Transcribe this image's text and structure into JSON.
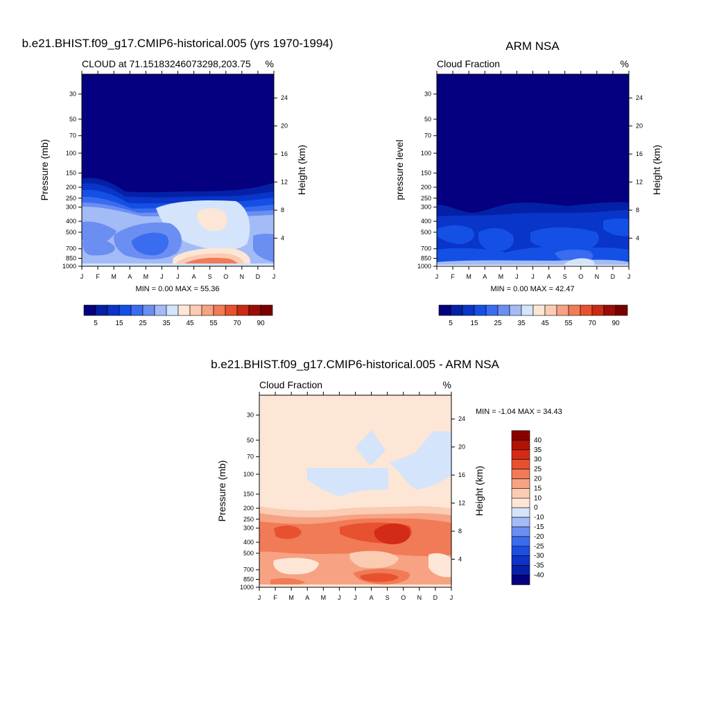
{
  "chart_data": [
    {
      "type": "heatmap",
      "title": "b.e21.BHIST.f09_g17.CMIP6-historical.005 (yrs 1970-1994)",
      "left_label": "CLOUD at 71.15183246073298,203.75",
      "right_label": "%",
      "ylabel": "Pressure (mb)",
      "ylabel_right": "Height (km)",
      "xticks": [
        "J",
        "F",
        "M",
        "A",
        "M",
        "J",
        "J",
        "A",
        "S",
        "O",
        "N",
        "D",
        "J"
      ],
      "yticks": [
        "30",
        "50",
        "70",
        "100",
        "150",
        "200",
        "250",
        "300",
        "400",
        "500",
        "700",
        "850",
        "1000"
      ],
      "height_ticks": [
        "24",
        "20",
        "16",
        "12",
        "8",
        "4"
      ],
      "stats": "MIN =   0.00 MAX =  55.36",
      "min": 0.0,
      "max": 55.36,
      "levels": [
        5,
        10,
        15,
        20,
        25,
        30,
        35,
        40,
        45,
        50,
        55,
        60,
        70,
        80,
        90
      ],
      "colorbar_labels": [
        "5",
        "15",
        "25",
        "35",
        "45",
        "55",
        "70",
        "90"
      ],
      "colorbar_label_index": [
        0,
        2,
        4,
        6,
        8,
        10,
        12,
        14
      ]
    },
    {
      "type": "heatmap",
      "title": "ARM NSA",
      "left_label": "Cloud Fraction",
      "right_label": "%",
      "ylabel": "pressure level",
      "ylabel_right": "Height (km)",
      "xticks": [
        "J",
        "F",
        "M",
        "A",
        "M",
        "J",
        "J",
        "A",
        "S",
        "O",
        "N",
        "D",
        "J"
      ],
      "yticks": [
        "30",
        "50",
        "70",
        "100",
        "150",
        "200",
        "250",
        "300",
        "400",
        "500",
        "700",
        "850",
        "1000"
      ],
      "height_ticks": [
        "24",
        "20",
        "16",
        "12",
        "8",
        "4"
      ],
      "stats": "MIN =   0.00 MAX =  42.47",
      "min": 0.0,
      "max": 42.47,
      "levels": [
        5,
        10,
        15,
        20,
        25,
        30,
        35,
        40,
        45,
        50,
        55,
        60,
        70,
        80,
        90
      ],
      "colorbar_labels": [
        "5",
        "15",
        "25",
        "35",
        "45",
        "55",
        "70",
        "90"
      ],
      "colorbar_label_index": [
        0,
        2,
        4,
        6,
        8,
        10,
        12,
        14
      ]
    },
    {
      "type": "heatmap",
      "title": "b.e21.BHIST.f09_g17.CMIP6-historical.005 - ARM NSA",
      "left_label": "Cloud Fraction",
      "right_label": "%",
      "ylabel": "Pressure (mb)",
      "ylabel_right": "Height (km)",
      "xticks": [
        "J",
        "F",
        "M",
        "A",
        "M",
        "J",
        "J",
        "A",
        "S",
        "O",
        "N",
        "D",
        "J"
      ],
      "yticks": [
        "30",
        "50",
        "70",
        "100",
        "150",
        "200",
        "250",
        "300",
        "400",
        "500",
        "700",
        "850",
        "1000"
      ],
      "height_ticks": [
        "24",
        "20",
        "16",
        "12",
        "8",
        "4"
      ],
      "stats": "MIN =  -1.04 MAX =  34.43",
      "min": -1.04,
      "max": 34.43,
      "levels": [
        -40,
        -35,
        -30,
        -25,
        -20,
        -15,
        -10,
        0,
        10,
        15,
        20,
        25,
        30,
        35,
        40
      ],
      "colorbar_labels": [
        "40",
        "35",
        "30",
        "25",
        "20",
        "15",
        "10",
        "0",
        "-10",
        "-15",
        "-20",
        "-25",
        "-30",
        "-35",
        "-40"
      ]
    }
  ],
  "colors": {
    "cloud_palette": [
      "#04007f",
      "#0420a6",
      "#0935c8",
      "#1450e6",
      "#3a6cf0",
      "#6b8ef2",
      "#a3bbf6",
      "#d4e4fb",
      "#fde6d6",
      "#fbcbb2",
      "#f6a283",
      "#f07b56",
      "#e8512f",
      "#c92a14",
      "#9b0d04",
      "#7a0000"
    ],
    "diff_palette": [
      "#04007f",
      "#0a1fa8",
      "#0d33c8",
      "#1d4ee0",
      "#3a6cf0",
      "#6b8ef2",
      "#a3bbf6",
      "#d4e4fb",
      "#fde6d6",
      "#fbcbb2",
      "#f6a283",
      "#f07b56",
      "#e8512f",
      "#d42b16",
      "#b01206",
      "#8a0000"
    ]
  }
}
